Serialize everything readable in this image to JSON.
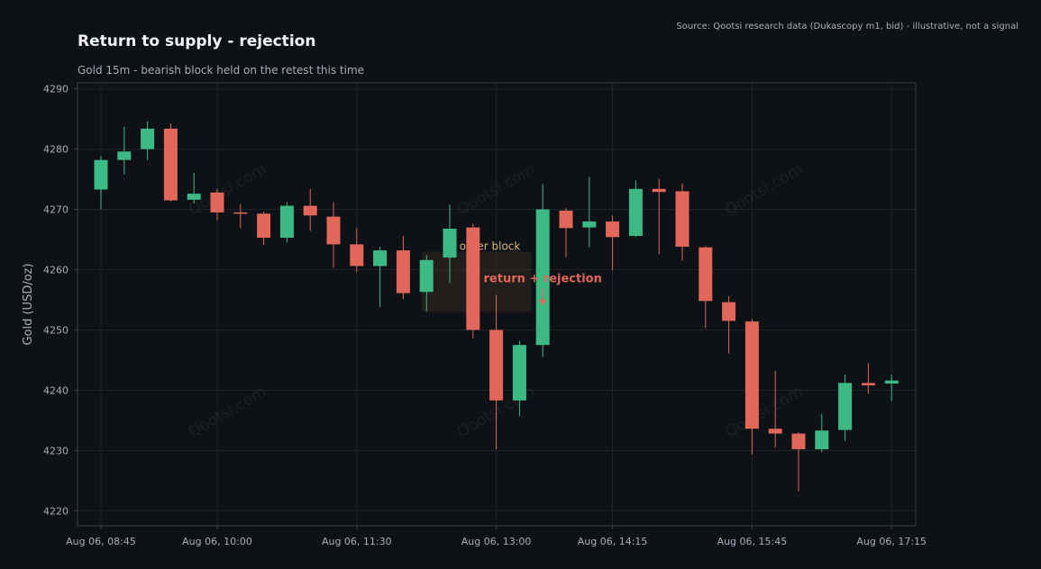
{
  "title": "Return to supply - rejection",
  "subtitle": "Gold 15m - bearish block held on the retest this time",
  "source": "Source: Qootsi research data (Dukascopy m1, bid) - illustrative, not a signal",
  "colors": {
    "background": "#0e1116",
    "bullish": "#3dba84",
    "bearish": "#e0675a",
    "zone": "#3a2e22",
    "grid": "#1f242b",
    "axis": "#3a3f46"
  },
  "chart_data": {
    "type": "candlestick",
    "ylabel": "Gold (USD/oz)",
    "ylim": [
      4217.5,
      4291
    ],
    "yticks": [
      4220,
      4230,
      4240,
      4250,
      4260,
      4270,
      4280,
      4290
    ],
    "x_tick_labels": [
      "Aug 06, 08:45",
      "Aug 06, 10:00",
      "Aug 06, 11:30",
      "Aug 06, 13:00",
      "Aug 06, 14:15",
      "Aug 06, 15:45",
      "Aug 06, 17:15"
    ],
    "x_tick_indices": [
      0,
      5,
      11,
      17,
      22,
      28,
      34
    ],
    "grid": true,
    "watermark": "Qootsi.com",
    "candles": [
      {
        "time": "08:45",
        "open": 4273.3,
        "high": 4278.8,
        "low": 4270.0,
        "close": 4278.2
      },
      {
        "time": "09:00",
        "open": 4278.2,
        "high": 4283.7,
        "low": 4275.8,
        "close": 4279.6
      },
      {
        "time": "09:15",
        "open": 4280.0,
        "high": 4284.6,
        "low": 4278.2,
        "close": 4283.4
      },
      {
        "time": "09:30",
        "open": 4283.4,
        "high": 4284.3,
        "low": 4271.3,
        "close": 4271.5
      },
      {
        "time": "09:45",
        "open": 4271.6,
        "high": 4276.1,
        "low": 4271.0,
        "close": 4272.6
      },
      {
        "time": "10:00",
        "open": 4272.8,
        "high": 4273.4,
        "low": 4268.2,
        "close": 4269.5
      },
      {
        "time": "10:15",
        "open": 4269.5,
        "high": 4270.9,
        "low": 4266.9,
        "close": 4269.3
      },
      {
        "time": "10:30",
        "open": 4269.3,
        "high": 4269.6,
        "low": 4264.1,
        "close": 4265.3
      },
      {
        "time": "10:45",
        "open": 4265.3,
        "high": 4271.2,
        "low": 4264.5,
        "close": 4270.6
      },
      {
        "time": "11:00",
        "open": 4270.6,
        "high": 4273.4,
        "low": 4266.4,
        "close": 4269.0
      },
      {
        "time": "11:15",
        "open": 4268.8,
        "high": 4271.2,
        "low": 4260.3,
        "close": 4264.2
      },
      {
        "time": "11:30",
        "open": 4264.2,
        "high": 4266.9,
        "low": 4259.6,
        "close": 4260.6
      },
      {
        "time": "11:45",
        "open": 4260.6,
        "high": 4263.8,
        "low": 4253.8,
        "close": 4263.2
      },
      {
        "time": "12:00",
        "open": 4263.2,
        "high": 4265.6,
        "low": 4255.1,
        "close": 4256.1
      },
      {
        "time": "12:15",
        "open": 4256.3,
        "high": 4262.4,
        "low": 4253.0,
        "close": 4261.6
      },
      {
        "time": "12:30",
        "open": 4262.0,
        "high": 4270.8,
        "low": 4257.8,
        "close": 4266.8
      },
      {
        "time": "12:45",
        "open": 4267.0,
        "high": 4267.6,
        "low": 4248.6,
        "close": 4250.0
      },
      {
        "time": "13:00",
        "open": 4250.0,
        "high": 4255.8,
        "low": 4230.2,
        "close": 4238.3
      },
      {
        "time": "13:15",
        "open": 4238.3,
        "high": 4248.2,
        "low": 4235.7,
        "close": 4247.5
      },
      {
        "time": "13:30",
        "open": 4247.5,
        "high": 4274.2,
        "low": 4245.5,
        "close": 4270.0
      },
      {
        "time": "13:45",
        "open": 4269.8,
        "high": 4270.2,
        "low": 4262.1,
        "close": 4266.9
      },
      {
        "time": "14:00",
        "open": 4267.0,
        "high": 4275.4,
        "low": 4263.7,
        "close": 4268.0
      },
      {
        "time": "14:15",
        "open": 4268.0,
        "high": 4269.0,
        "low": 4259.9,
        "close": 4265.4
      },
      {
        "time": "14:30",
        "open": 4265.6,
        "high": 4274.8,
        "low": 4265.4,
        "close": 4273.4
      },
      {
        "time": "14:45",
        "open": 4273.4,
        "high": 4275.1,
        "low": 4262.6,
        "close": 4272.9
      },
      {
        "time": "15:00",
        "open": 4273.0,
        "high": 4274.3,
        "low": 4261.5,
        "close": 4263.8
      },
      {
        "time": "15:15",
        "open": 4263.7,
        "high": 4263.9,
        "low": 4250.3,
        "close": 4254.8
      },
      {
        "time": "15:30",
        "open": 4254.6,
        "high": 4255.6,
        "low": 4246.1,
        "close": 4251.5
      },
      {
        "time": "15:45",
        "open": 4251.4,
        "high": 4251.8,
        "low": 4229.3,
        "close": 4233.6
      },
      {
        "time": "16:00",
        "open": 4233.6,
        "high": 4243.2,
        "low": 4230.5,
        "close": 4232.8
      },
      {
        "time": "16:15",
        "open": 4232.8,
        "high": 4233.0,
        "low": 4223.2,
        "close": 4230.2
      },
      {
        "time": "16:30",
        "open": 4230.2,
        "high": 4236.1,
        "low": 4229.7,
        "close": 4233.3
      },
      {
        "time": "16:45",
        "open": 4233.4,
        "high": 4242.6,
        "low": 4231.6,
        "close": 4241.2
      },
      {
        "time": "17:00",
        "open": 4241.2,
        "high": 4244.5,
        "low": 4239.4,
        "close": 4240.8
      },
      {
        "time": "17:15",
        "open": 4241.1,
        "high": 4242.6,
        "low": 4238.2,
        "close": 4241.6
      }
    ],
    "zones": [
      {
        "label": "order block",
        "from": "12:15",
        "to": "13:30",
        "price_low": 4253.0,
        "price_high": 4263.0
      }
    ],
    "annotations": [
      {
        "text": "return + rejection",
        "time": "13:30",
        "price": 4254.0
      }
    ]
  }
}
